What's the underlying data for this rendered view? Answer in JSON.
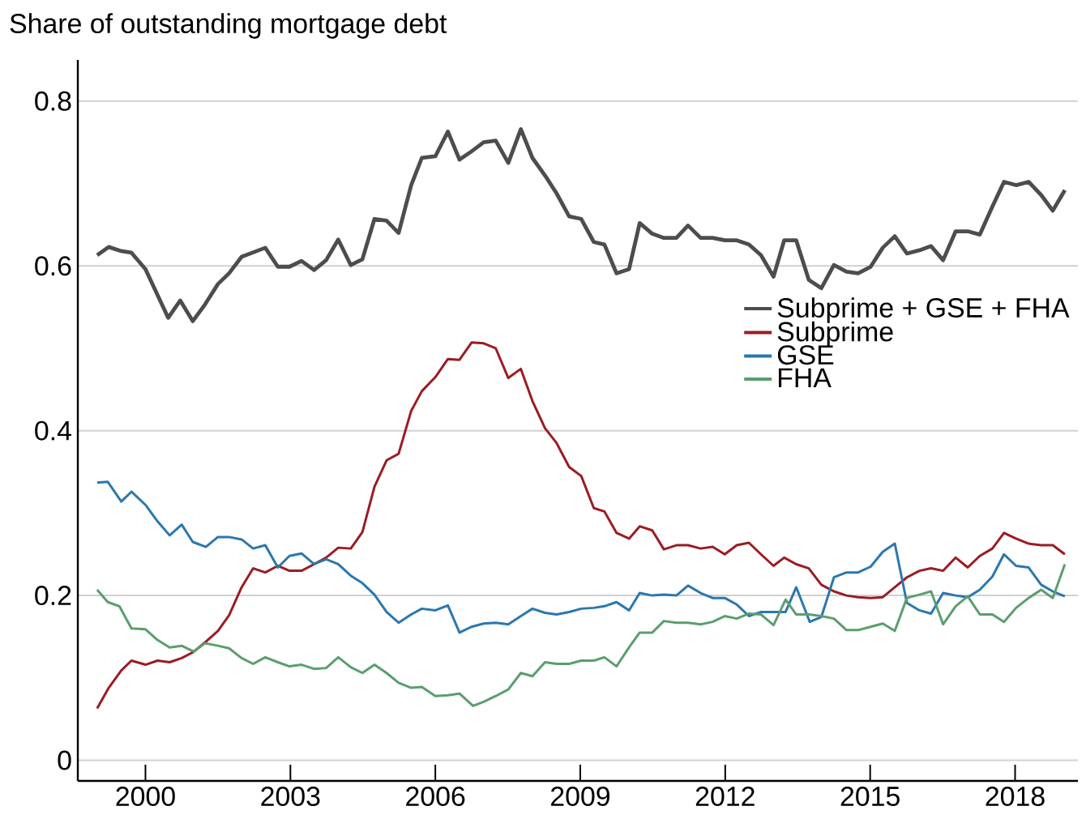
{
  "chart_data": {
    "type": "line",
    "title": "Share of outstanding mortgage debt",
    "xlim": [
      1998.6,
      2019.3
    ],
    "ylim": [
      -0.025,
      0.85
    ],
    "xticks": [
      2000,
      2003,
      2006,
      2009,
      2012,
      2015,
      2018
    ],
    "yticks": [
      0,
      0.2,
      0.4,
      0.6,
      0.8
    ],
    "grid": "y",
    "legend": "right",
    "series": [
      {
        "name": "Subprime + GSE + FHA",
        "color": "#4d4d4d",
        "x": [
          1999.0,
          1999.24,
          1999.5,
          1999.71,
          2000.0,
          2000.47,
          2000.72,
          2000.98,
          2001.23,
          2001.5,
          2001.73,
          2001.99,
          2002.48,
          2002.74,
          2002.98,
          2003.23,
          2003.49,
          2003.74,
          2003.99,
          2004.25,
          2004.49,
          2004.74,
          2004.99,
          2005.24,
          2005.5,
          2005.72,
          2006.0,
          2006.26,
          2006.5,
          2006.75,
          2007.0,
          2007.25,
          2007.51,
          2007.77,
          2008.01,
          2008.29,
          2008.51,
          2008.77,
          2009.02,
          2009.28,
          2009.5,
          2009.75,
          2010.01,
          2010.23,
          2010.49,
          2010.73,
          2010.99,
          2011.23,
          2011.49,
          2011.74,
          2011.99,
          2012.24,
          2012.49,
          2012.74,
          2013.0,
          2013.22,
          2013.47,
          2013.73,
          2013.99,
          2014.25,
          2014.51,
          2014.75,
          2015.01,
          2015.26,
          2015.51,
          2015.76,
          2016.02,
          2016.26,
          2016.51,
          2016.77,
          2017.02,
          2017.27,
          2017.53,
          2017.77,
          2018.02,
          2018.28,
          2018.54,
          2018.78,
          2019.03
        ],
        "values": [
          0.613,
          0.623,
          0.618,
          0.616,
          0.596,
          0.537,
          0.558,
          0.533,
          0.553,
          0.578,
          0.591,
          0.611,
          0.622,
          0.599,
          0.599,
          0.606,
          0.595,
          0.607,
          0.632,
          0.601,
          0.608,
          0.657,
          0.655,
          0.64,
          0.698,
          0.731,
          0.733,
          0.763,
          0.729,
          0.739,
          0.75,
          0.752,
          0.725,
          0.766,
          0.731,
          0.708,
          0.688,
          0.66,
          0.657,
          0.629,
          0.626,
          0.591,
          0.596,
          0.652,
          0.639,
          0.634,
          0.634,
          0.649,
          0.634,
          0.634,
          0.631,
          0.631,
          0.626,
          0.613,
          0.587,
          0.631,
          0.631,
          0.583,
          0.573,
          0.601,
          0.593,
          0.591,
          0.599,
          0.622,
          0.636,
          0.615,
          0.619,
          0.624,
          0.607,
          0.642,
          0.642,
          0.638,
          0.672,
          0.702,
          0.698,
          0.702,
          0.686,
          0.667,
          0.692
        ]
      },
      {
        "name": "Subprime",
        "color": "#9b1c22",
        "x": [
          1999.0,
          1999.24,
          1999.5,
          1999.71,
          2000.0,
          2000.25,
          2000.5,
          2000.75,
          2000.98,
          2001.25,
          2001.5,
          2001.73,
          2001.99,
          2002.23,
          2002.48,
          2002.74,
          2002.98,
          2003.23,
          2003.49,
          2003.74,
          2003.99,
          2004.25,
          2004.49,
          2004.74,
          2004.99,
          2005.24,
          2005.5,
          2005.72,
          2006.0,
          2006.26,
          2006.5,
          2006.75,
          2007.0,
          2007.25,
          2007.51,
          2007.77,
          2008.01,
          2008.27,
          2008.51,
          2008.77,
          2009.02,
          2009.28,
          2009.5,
          2009.75,
          2010.01,
          2010.23,
          2010.49,
          2010.73,
          2010.99,
          2011.23,
          2011.49,
          2011.74,
          2011.99,
          2012.24,
          2012.49,
          2012.74,
          2013.0,
          2013.22,
          2013.47,
          2013.73,
          2013.99,
          2014.25,
          2014.51,
          2014.75,
          2015.01,
          2015.26,
          2015.51,
          2015.76,
          2016.02,
          2016.26,
          2016.51,
          2016.77,
          2017.02,
          2017.27,
          2017.53,
          2017.77,
          2018.02,
          2018.28,
          2018.54,
          2018.78,
          2019.03
        ],
        "values": [
          0.063,
          0.088,
          0.109,
          0.121,
          0.116,
          0.121,
          0.119,
          0.124,
          0.131,
          0.144,
          0.157,
          0.176,
          0.21,
          0.233,
          0.228,
          0.236,
          0.23,
          0.23,
          0.238,
          0.246,
          0.258,
          0.257,
          0.277,
          0.332,
          0.364,
          0.372,
          0.424,
          0.448,
          0.465,
          0.487,
          0.486,
          0.507,
          0.506,
          0.5,
          0.464,
          0.475,
          0.436,
          0.403,
          0.385,
          0.356,
          0.345,
          0.306,
          0.302,
          0.276,
          0.269,
          0.284,
          0.279,
          0.256,
          0.261,
          0.261,
          0.257,
          0.259,
          0.25,
          0.261,
          0.264,
          0.25,
          0.236,
          0.246,
          0.238,
          0.233,
          0.213,
          0.205,
          0.2,
          0.198,
          0.197,
          0.198,
          0.21,
          0.222,
          0.23,
          0.233,
          0.23,
          0.246,
          0.234,
          0.248,
          0.257,
          0.276,
          0.269,
          0.263,
          0.261,
          0.261,
          0.25
        ]
      },
      {
        "name": "GSE",
        "color": "#2b77ae",
        "x": [
          1999.0,
          1999.22,
          1999.5,
          1999.71,
          2000.0,
          2000.25,
          2000.5,
          2000.75,
          2000.98,
          2001.25,
          2001.5,
          2001.73,
          2001.99,
          2002.23,
          2002.48,
          2002.74,
          2002.98,
          2003.23,
          2003.49,
          2003.74,
          2003.99,
          2004.25,
          2004.49,
          2004.74,
          2004.99,
          2005.24,
          2005.5,
          2005.72,
          2006.0,
          2006.26,
          2006.5,
          2006.75,
          2007.0,
          2007.25,
          2007.51,
          2007.77,
          2008.01,
          2008.27,
          2008.51,
          2008.77,
          2009.02,
          2009.28,
          2009.5,
          2009.75,
          2010.01,
          2010.23,
          2010.49,
          2010.73,
          2010.99,
          2011.23,
          2011.49,
          2011.74,
          2011.99,
          2012.24,
          2012.49,
          2012.74,
          2013.0,
          2013.25,
          2013.47,
          2013.75,
          2013.99,
          2014.25,
          2014.51,
          2014.75,
          2015.01,
          2015.26,
          2015.51,
          2015.76,
          2016.02,
          2016.26,
          2016.51,
          2016.77,
          2017.02,
          2017.27,
          2017.53,
          2017.77,
          2018.02,
          2018.28,
          2018.54,
          2018.78,
          2019.03
        ],
        "values": [
          0.337,
          0.338,
          0.314,
          0.326,
          0.31,
          0.29,
          0.273,
          0.286,
          0.265,
          0.259,
          0.271,
          0.271,
          0.268,
          0.257,
          0.261,
          0.234,
          0.248,
          0.251,
          0.238,
          0.244,
          0.238,
          0.224,
          0.215,
          0.201,
          0.18,
          0.167,
          0.177,
          0.184,
          0.182,
          0.188,
          0.155,
          0.162,
          0.166,
          0.167,
          0.165,
          0.175,
          0.184,
          0.179,
          0.177,
          0.18,
          0.184,
          0.185,
          0.187,
          0.192,
          0.182,
          0.203,
          0.2,
          0.201,
          0.2,
          0.212,
          0.203,
          0.197,
          0.197,
          0.189,
          0.175,
          0.18,
          0.18,
          0.18,
          0.21,
          0.168,
          0.174,
          0.222,
          0.228,
          0.228,
          0.235,
          0.253,
          0.263,
          0.191,
          0.182,
          0.178,
          0.203,
          0.2,
          0.198,
          0.207,
          0.223,
          0.25,
          0.236,
          0.234,
          0.213,
          0.205,
          0.199
        ]
      },
      {
        "name": "FHA",
        "color": "#5a9e6e",
        "x": [
          1999.0,
          1999.22,
          1999.46,
          1999.71,
          2000.0,
          2000.25,
          2000.5,
          2000.75,
          2001.0,
          2001.23,
          2001.5,
          2001.73,
          2001.99,
          2002.23,
          2002.48,
          2002.74,
          2002.98,
          2003.23,
          2003.49,
          2003.74,
          2003.99,
          2004.25,
          2004.49,
          2004.74,
          2004.99,
          2005.24,
          2005.5,
          2005.72,
          2006.0,
          2006.26,
          2006.5,
          2006.78,
          2007.0,
          2007.25,
          2007.51,
          2007.77,
          2008.01,
          2008.27,
          2008.51,
          2008.77,
          2009.02,
          2009.28,
          2009.5,
          2009.75,
          2010.01,
          2010.23,
          2010.49,
          2010.73,
          2010.99,
          2011.23,
          2011.49,
          2011.74,
          2011.99,
          2012.24,
          2012.49,
          2012.74,
          2013.0,
          2013.25,
          2013.47,
          2013.73,
          2013.99,
          2014.25,
          2014.51,
          2014.75,
          2015.01,
          2015.26,
          2015.51,
          2015.76,
          2016.02,
          2016.26,
          2016.51,
          2016.77,
          2017.02,
          2017.27,
          2017.53,
          2017.77,
          2018.02,
          2018.28,
          2018.54,
          2018.78,
          2019.03
        ],
        "values": [
          0.207,
          0.192,
          0.187,
          0.16,
          0.159,
          0.146,
          0.137,
          0.139,
          0.132,
          0.142,
          0.139,
          0.136,
          0.124,
          0.117,
          0.125,
          0.119,
          0.114,
          0.116,
          0.111,
          0.112,
          0.125,
          0.113,
          0.106,
          0.116,
          0.106,
          0.094,
          0.088,
          0.089,
          0.078,
          0.079,
          0.081,
          0.066,
          0.071,
          0.078,
          0.086,
          0.106,
          0.102,
          0.119,
          0.117,
          0.117,
          0.121,
          0.121,
          0.125,
          0.114,
          0.137,
          0.155,
          0.155,
          0.169,
          0.167,
          0.167,
          0.165,
          0.168,
          0.175,
          0.172,
          0.178,
          0.177,
          0.164,
          0.195,
          0.177,
          0.177,
          0.175,
          0.172,
          0.158,
          0.158,
          0.162,
          0.166,
          0.157,
          0.197,
          0.201,
          0.205,
          0.165,
          0.187,
          0.199,
          0.177,
          0.177,
          0.168,
          0.185,
          0.197,
          0.207,
          0.197,
          0.238
        ]
      }
    ]
  }
}
